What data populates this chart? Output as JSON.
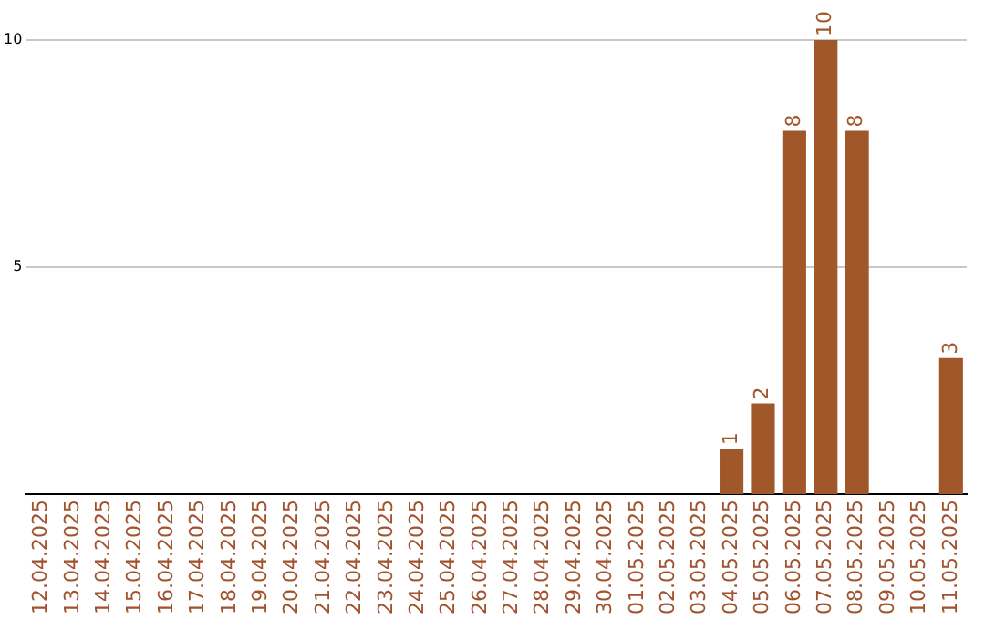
{
  "chart_data": {
    "type": "bar",
    "categories": [
      "12.04.2025",
      "13.04.2025",
      "14.04.2025",
      "15.04.2025",
      "16.04.2025",
      "17.04.2025",
      "18.04.2025",
      "19.04.2025",
      "20.04.2025",
      "21.04.2025",
      "22.04.2025",
      "23.04.2025",
      "24.04.2025",
      "25.04.2025",
      "26.04.2025",
      "27.04.2025",
      "28.04.2025",
      "29.04.2025",
      "30.04.2025",
      "01.05.2025",
      "02.05.2025",
      "03.05.2025",
      "04.05.2025",
      "05.05.2025",
      "06.05.2025",
      "07.05.2025",
      "08.05.2025",
      "09.05.2025",
      "10.05.2025",
      "11.05.2025"
    ],
    "values": [
      0,
      0,
      0,
      0,
      0,
      0,
      0,
      0,
      0,
      0,
      0,
      0,
      0,
      0,
      0,
      0,
      0,
      0,
      0,
      0,
      0,
      0,
      1,
      2,
      8,
      10,
      8,
      0,
      0,
      3
    ],
    "value_labels": [
      null,
      null,
      null,
      null,
      null,
      null,
      null,
      null,
      null,
      null,
      null,
      null,
      null,
      null,
      null,
      null,
      null,
      null,
      null,
      null,
      null,
      null,
      "1",
      "2",
      "8",
      "10",
      "8",
      null,
      null,
      "3"
    ],
    "color": "#a0582a",
    "ylim": [
      0,
      10
    ],
    "yticks": [
      5,
      10
    ],
    "grid": "y",
    "legend": false
  }
}
